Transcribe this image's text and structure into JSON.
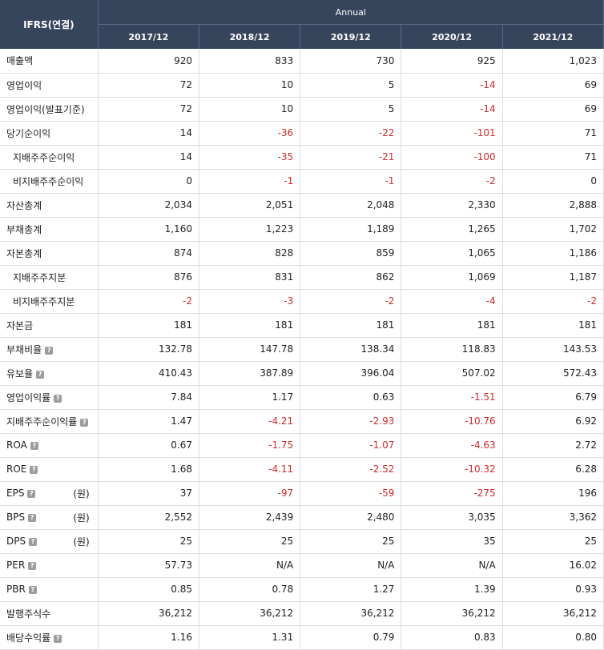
{
  "header": {
    "corner": "IFRS(연결)",
    "group": "Annual",
    "years": [
      "2017/12",
      "2018/12",
      "2019/12",
      "2020/12",
      "2021/12"
    ]
  },
  "rows": [
    {
      "label": "매출액",
      "indent": false,
      "help": false,
      "unit": "",
      "values": [
        "920",
        "833",
        "730",
        "925",
        "1,023"
      ]
    },
    {
      "label": "영업이익",
      "indent": false,
      "help": false,
      "unit": "",
      "values": [
        "72",
        "10",
        "5",
        "-14",
        "69"
      ]
    },
    {
      "label": "영업이익(발표기준)",
      "indent": false,
      "help": false,
      "unit": "",
      "values": [
        "72",
        "10",
        "5",
        "-14",
        "69"
      ]
    },
    {
      "label": "당기순이익",
      "indent": false,
      "help": false,
      "unit": "",
      "values": [
        "14",
        "-36",
        "-22",
        "-101",
        "71"
      ]
    },
    {
      "label": "지배주주순이익",
      "indent": true,
      "help": false,
      "unit": "",
      "values": [
        "14",
        "-35",
        "-21",
        "-100",
        "71"
      ]
    },
    {
      "label": "비지배주주순이익",
      "indent": true,
      "help": false,
      "unit": "",
      "values": [
        "0",
        "-1",
        "-1",
        "-2",
        "0"
      ]
    },
    {
      "label": "자산총계",
      "indent": false,
      "help": false,
      "unit": "",
      "values": [
        "2,034",
        "2,051",
        "2,048",
        "2,330",
        "2,888"
      ]
    },
    {
      "label": "부채총계",
      "indent": false,
      "help": false,
      "unit": "",
      "values": [
        "1,160",
        "1,223",
        "1,189",
        "1,265",
        "1,702"
      ]
    },
    {
      "label": "자본총계",
      "indent": false,
      "help": false,
      "unit": "",
      "values": [
        "874",
        "828",
        "859",
        "1,065",
        "1,186"
      ]
    },
    {
      "label": "지배주주지분",
      "indent": true,
      "help": false,
      "unit": "",
      "values": [
        "876",
        "831",
        "862",
        "1,069",
        "1,187"
      ]
    },
    {
      "label": "비지배주주지분",
      "indent": true,
      "help": false,
      "unit": "",
      "values": [
        "-2",
        "-3",
        "-2",
        "-4",
        "-2"
      ]
    },
    {
      "label": "자본금",
      "indent": false,
      "help": false,
      "unit": "",
      "values": [
        "181",
        "181",
        "181",
        "181",
        "181"
      ]
    },
    {
      "label": "부채비율",
      "indent": false,
      "help": true,
      "unit": "",
      "values": [
        "132.78",
        "147.78",
        "138.34",
        "118.83",
        "143.53"
      ]
    },
    {
      "label": "유보율",
      "indent": false,
      "help": true,
      "unit": "",
      "values": [
        "410.43",
        "387.89",
        "396.04",
        "507.02",
        "572.43"
      ]
    },
    {
      "label": "영업이익률",
      "indent": false,
      "help": true,
      "unit": "",
      "values": [
        "7.84",
        "1.17",
        "0.63",
        "-1.51",
        "6.79"
      ]
    },
    {
      "label": "지배주주순이익률",
      "indent": false,
      "help": true,
      "unit": "",
      "values": [
        "1.47",
        "-4.21",
        "-2.93",
        "-10.76",
        "6.92"
      ]
    },
    {
      "label": "ROA",
      "indent": false,
      "help": true,
      "unit": "",
      "values": [
        "0.67",
        "-1.75",
        "-1.07",
        "-4.63",
        "2.72"
      ]
    },
    {
      "label": "ROE",
      "indent": false,
      "help": true,
      "unit": "",
      "values": [
        "1.68",
        "-4.11",
        "-2.52",
        "-10.32",
        "6.28"
      ]
    },
    {
      "label": "EPS",
      "indent": false,
      "help": true,
      "unit": "(원)",
      "values": [
        "37",
        "-97",
        "-59",
        "-275",
        "196"
      ]
    },
    {
      "label": "BPS",
      "indent": false,
      "help": true,
      "unit": "(원)",
      "values": [
        "2,552",
        "2,439",
        "2,480",
        "3,035",
        "3,362"
      ]
    },
    {
      "label": "DPS",
      "indent": false,
      "help": true,
      "unit": "(원)",
      "values": [
        "25",
        "25",
        "25",
        "35",
        "25"
      ]
    },
    {
      "label": "PER",
      "indent": false,
      "help": true,
      "unit": "",
      "values": [
        "57.73",
        "N/A",
        "N/A",
        "N/A",
        "16.02"
      ]
    },
    {
      "label": "PBR",
      "indent": false,
      "help": true,
      "unit": "",
      "values": [
        "0.85",
        "0.78",
        "1.27",
        "1.39",
        "0.93"
      ]
    },
    {
      "label": "발행주식수",
      "indent": false,
      "help": false,
      "unit": "",
      "values": [
        "36,212",
        "36,212",
        "36,212",
        "36,212",
        "36,212"
      ]
    },
    {
      "label": "배당수익률",
      "indent": false,
      "help": true,
      "unit": "",
      "values": [
        "1.16",
        "1.31",
        "0.79",
        "0.83",
        "0.80"
      ]
    }
  ],
  "icons": {
    "help": "help-icon"
  },
  "colors": {
    "header_bg": "#37455c",
    "negative": "#d52a2a"
  }
}
